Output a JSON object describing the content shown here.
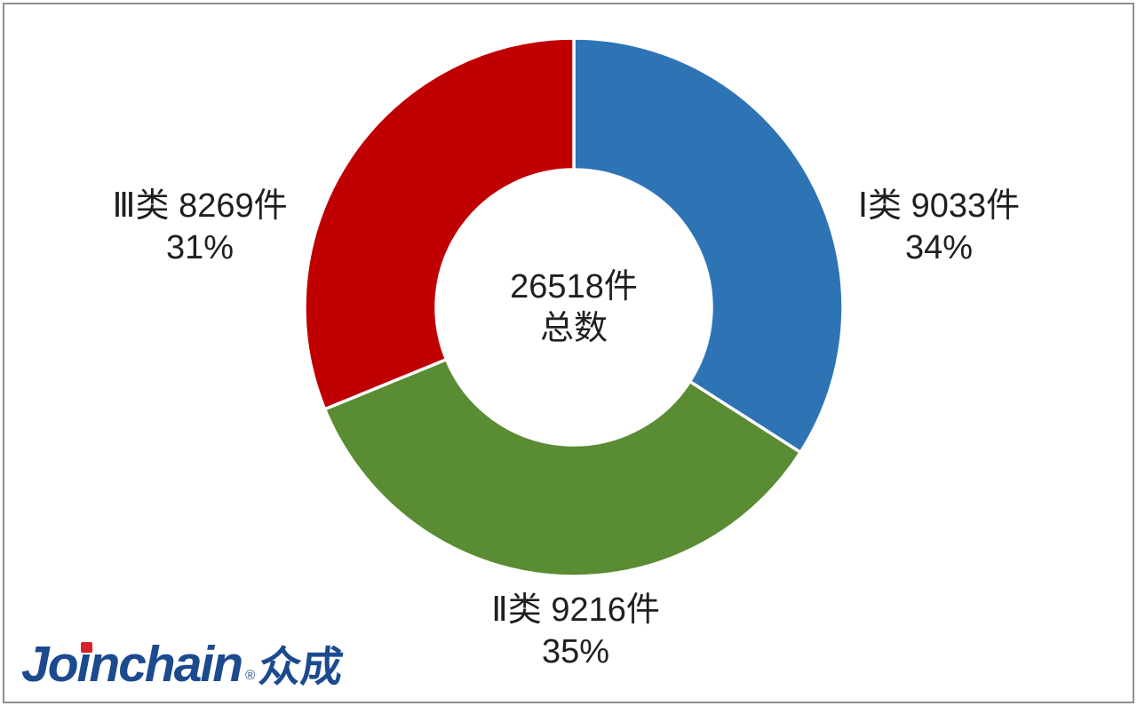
{
  "chart_data": {
    "type": "pie",
    "subtype": "donut",
    "title": "",
    "categories": [
      "Ⅰ类",
      "Ⅱ类",
      "Ⅲ类"
    ],
    "values": [
      9033,
      9216,
      8269
    ],
    "percentages": [
      34,
      35,
      31
    ],
    "unit": "件",
    "total": 26518,
    "colors": [
      "#2E74B5",
      "#5A8C34",
      "#C00000"
    ],
    "start_angle_deg": 0,
    "direction": "clockwise",
    "donut_hole_ratio": 0.51,
    "slice_gap_color": "#FFFFFF",
    "center_label": {
      "line1": "26518件",
      "line2": "总数"
    },
    "slice_labels": [
      {
        "line1": "Ⅰ类 9033件",
        "line2": "34%"
      },
      {
        "line1": "Ⅱ类 9216件",
        "line2": "35%"
      },
      {
        "line1": "Ⅲ类 8269件",
        "line2": "31%"
      }
    ],
    "legend": "none"
  },
  "logo": {
    "part1": "Jo",
    "part2": "i",
    "part3": "nchain",
    "reg": "®",
    "cjk": "众成",
    "color": "#1B4A8F",
    "dot_color": "#D92128"
  }
}
